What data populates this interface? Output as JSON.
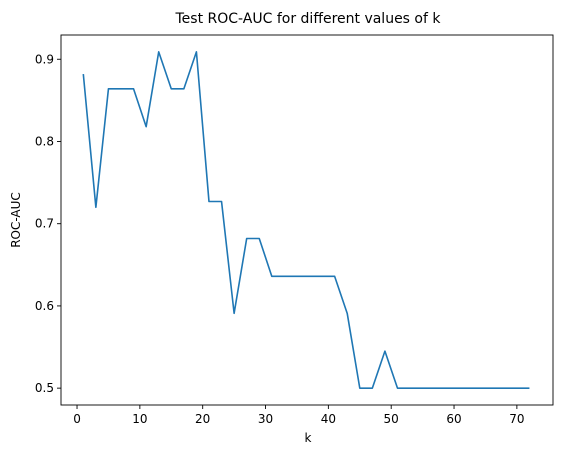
{
  "chart_data": {
    "type": "line",
    "title": "Test ROC-AUC for different values of k",
    "xlabel": "k",
    "ylabel": "ROC-AUC",
    "xlim": [
      -2.55,
      75.75
    ],
    "ylim": [
      0.4795,
      0.9295
    ],
    "xticks": [
      0,
      10,
      20,
      30,
      40,
      50,
      60,
      70
    ],
    "yticks": [
      0.5,
      0.6,
      0.7,
      0.8,
      0.9
    ],
    "grid": false,
    "legend": "none",
    "line_color": "#1f77b4",
    "series": [
      {
        "x": [
          1,
          3,
          5,
          7,
          9,
          11,
          13,
          15,
          17,
          19,
          21,
          23,
          25,
          27,
          29,
          31,
          33,
          35,
          37,
          39,
          41,
          43,
          45,
          47,
          49,
          51,
          53,
          55,
          57,
          59,
          61,
          63,
          65,
          67,
          69,
          71,
          72
        ],
        "y": [
          0.882,
          0.72,
          0.864,
          0.864,
          0.864,
          0.818,
          0.909,
          0.864,
          0.864,
          0.909,
          0.727,
          0.727,
          0.591,
          0.682,
          0.682,
          0.636,
          0.636,
          0.636,
          0.636,
          0.636,
          0.636,
          0.591,
          0.5,
          0.5,
          0.545,
          0.5,
          0.5,
          0.5,
          0.5,
          0.5,
          0.5,
          0.5,
          0.5,
          0.5,
          0.5,
          0.5,
          0.5
        ]
      }
    ]
  }
}
